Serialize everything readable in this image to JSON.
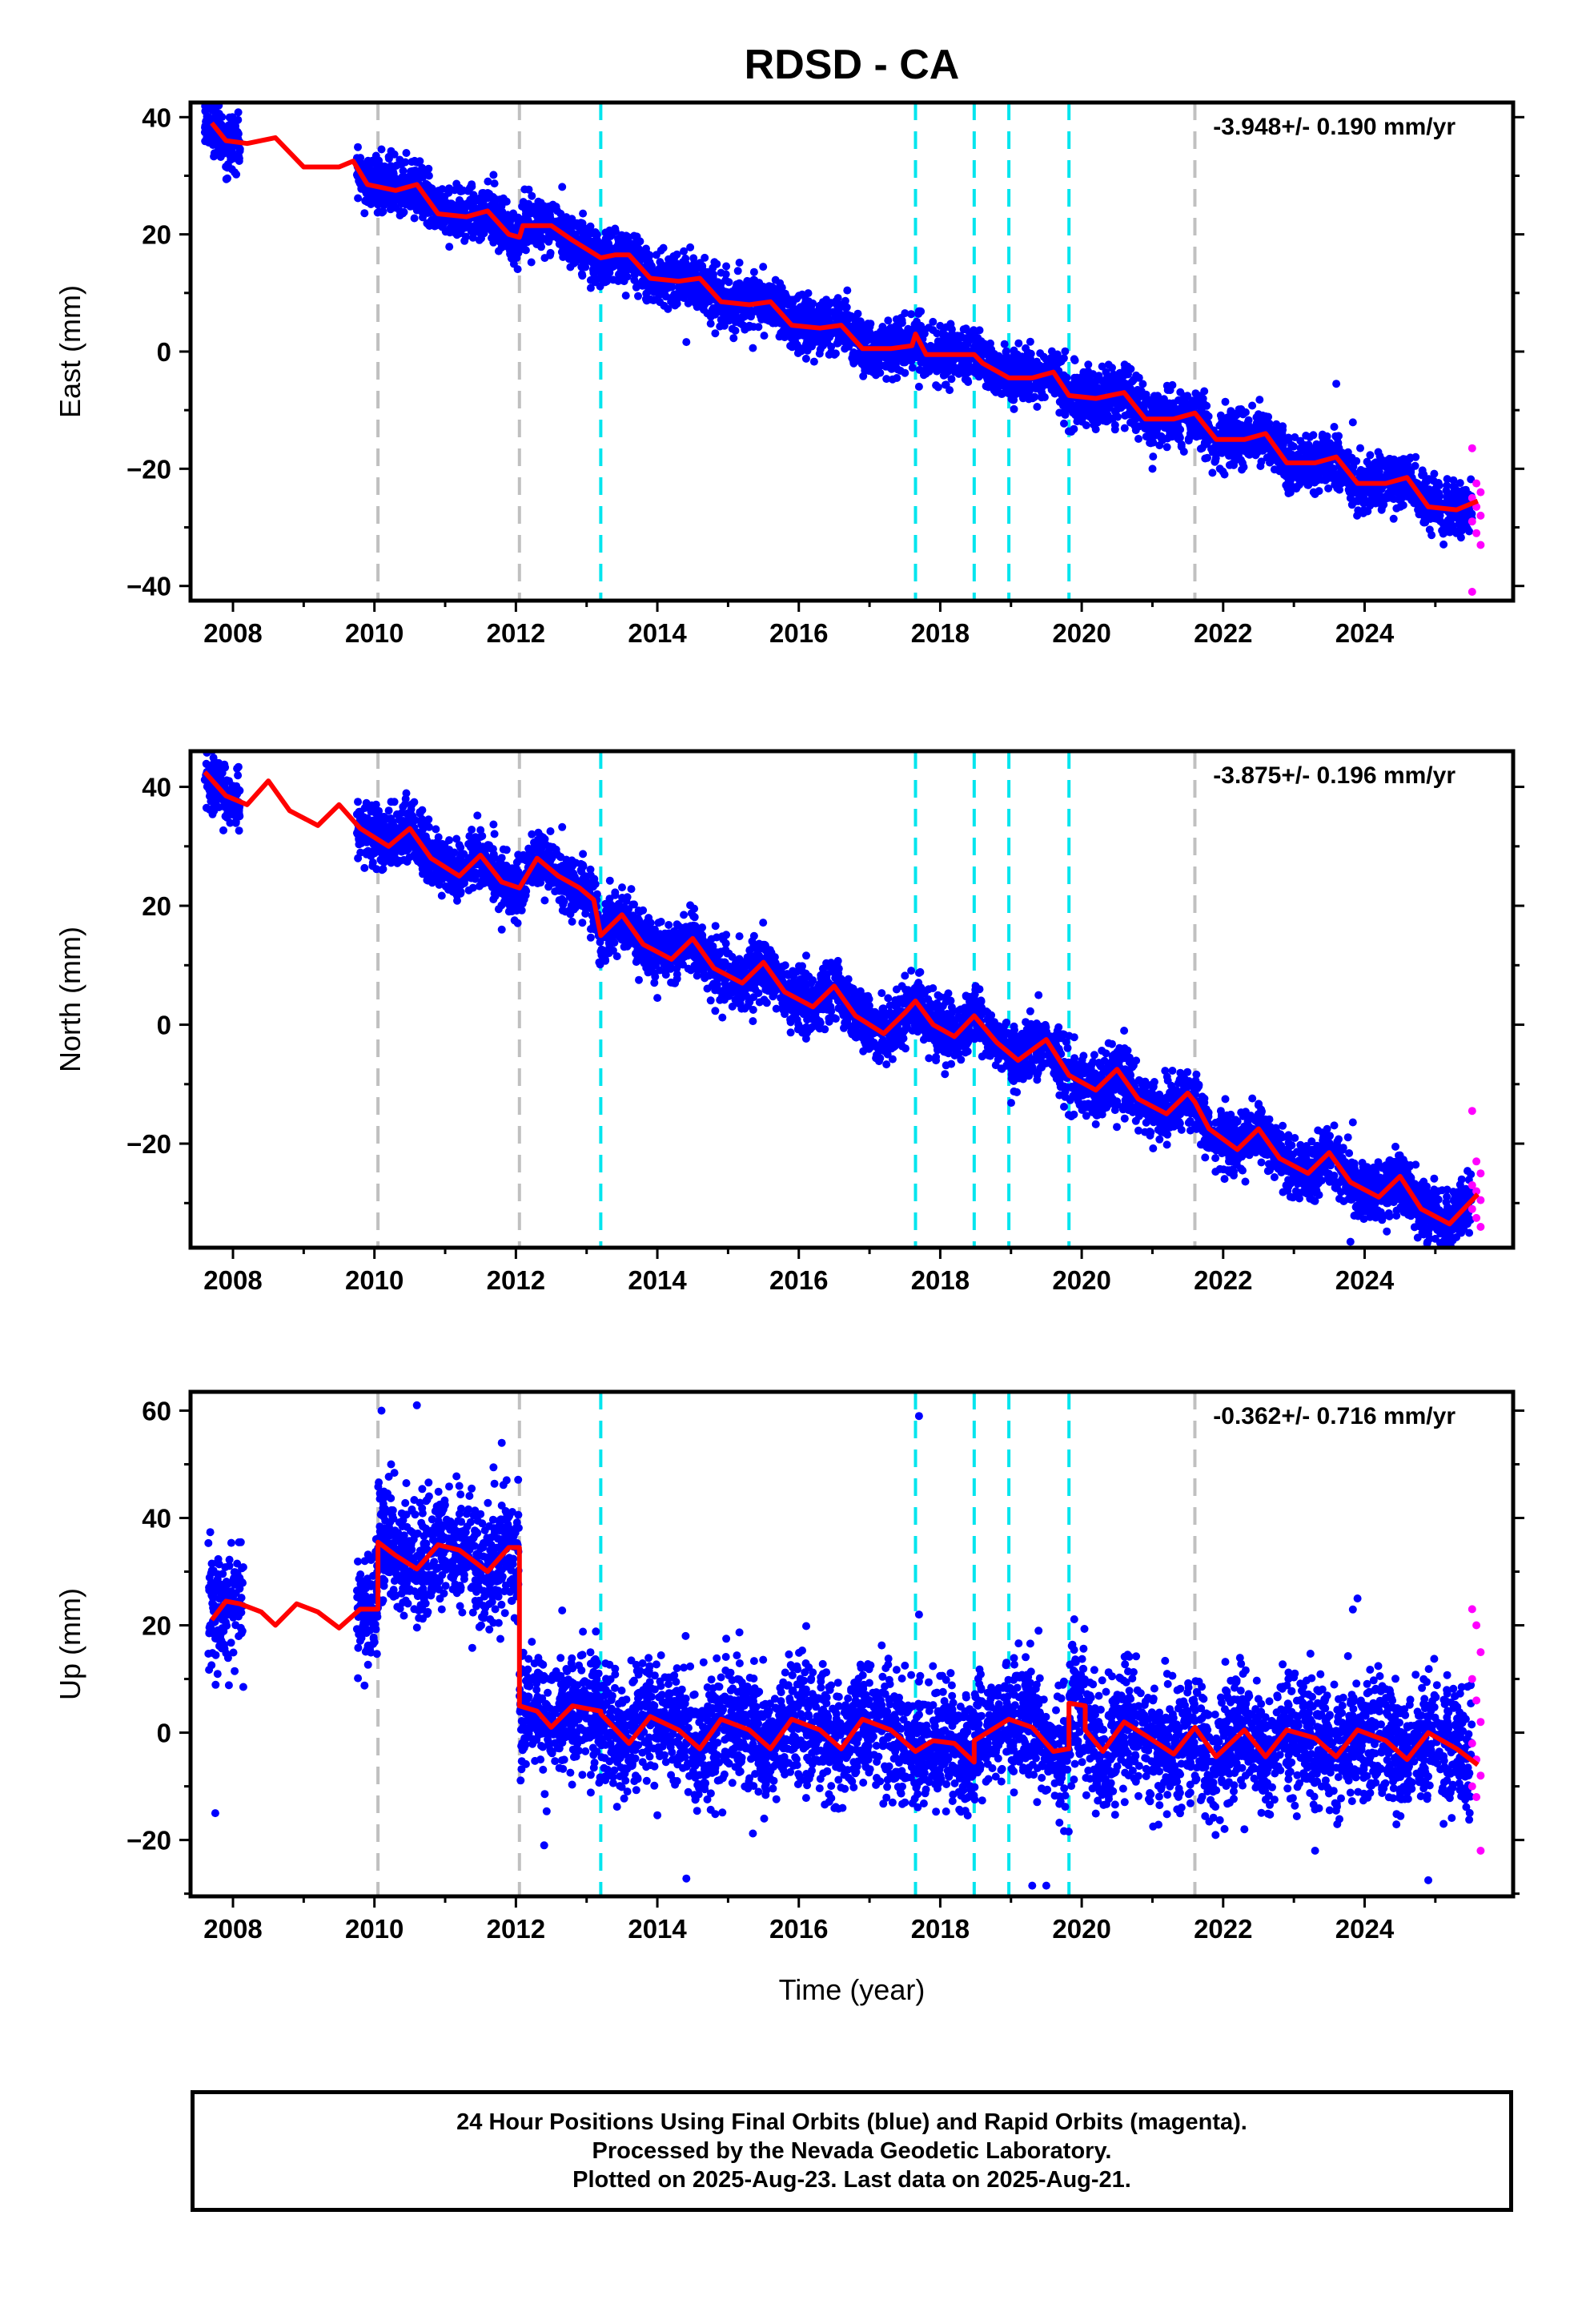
{
  "chart_data": {
    "type": "scatter",
    "title": "RDSD - CA",
    "xlabel": "Time (year)",
    "xlim": [
      2007.4,
      2026.1
    ],
    "xticks": [
      2008,
      2010,
      2012,
      2014,
      2016,
      2018,
      2020,
      2022,
      2024
    ],
    "xtick_labels": [
      "2008",
      "2010",
      "2012",
      "2014",
      "2016",
      "2018",
      "2020",
      "2022",
      "2024"
    ],
    "grey_dashed_lines": [
      2010.05,
      2012.05,
      2021.6
    ],
    "cyan_dashed_lines": [
      2013.2,
      2017.65,
      2018.48,
      2018.97,
      2019.82
    ],
    "colors": {
      "final": "#0000ff",
      "rapid": "#ff00ff",
      "model": "#ff0000",
      "grey_line": "#c0c0c0",
      "cyan_line": "#00e5ee"
    },
    "panels": [
      {
        "id": "east",
        "ylabel": "East (mm)",
        "ylim": [
          -42.5,
          42.5
        ],
        "yticks": [
          -40,
          -20,
          0,
          20,
          40
        ],
        "ytick_labels": [
          "−40",
          "−20",
          "0",
          "20",
          "40"
        ],
        "rate_label": "-3.948+/- 0.190 mm/yr",
        "rate": -3.948,
        "model": [
          [
            2007.7,
            39
          ],
          [
            2007.9,
            36
          ],
          [
            2008.2,
            35.5
          ],
          [
            2008.6,
            36.5
          ],
          [
            2009.0,
            31.5
          ],
          [
            2009.5,
            31.5
          ],
          [
            2009.7,
            32.5
          ],
          [
            2009.9,
            28.5
          ],
          [
            2010.3,
            27.5
          ],
          [
            2010.6,
            28.5
          ],
          [
            2010.9,
            23.5
          ],
          [
            2011.3,
            23
          ],
          [
            2011.6,
            24
          ],
          [
            2011.9,
            20
          ],
          [
            2012.05,
            19.5
          ],
          [
            2012.1,
            21.5
          ],
          [
            2012.5,
            21.5
          ],
          [
            2012.8,
            19
          ],
          [
            2013.0,
            17.5
          ],
          [
            2013.2,
            16
          ],
          [
            2013.4,
            16.5
          ],
          [
            2013.6,
            16.5
          ],
          [
            2013.9,
            12.5
          ],
          [
            2014.3,
            12
          ],
          [
            2014.6,
            12.5
          ],
          [
            2014.9,
            8.5
          ],
          [
            2015.3,
            8
          ],
          [
            2015.6,
            8.5
          ],
          [
            2015.9,
            4.5
          ],
          [
            2016.3,
            4
          ],
          [
            2016.6,
            4.5
          ],
          [
            2016.9,
            0.5
          ],
          [
            2017.3,
            0.5
          ],
          [
            2017.6,
            1
          ],
          [
            2017.65,
            3
          ],
          [
            2017.8,
            -0.5
          ],
          [
            2018.1,
            -0.5
          ],
          [
            2018.48,
            -0.5
          ],
          [
            2018.6,
            -2
          ],
          [
            2018.97,
            -4.5
          ],
          [
            2019.3,
            -4.5
          ],
          [
            2019.6,
            -3.5
          ],
          [
            2019.82,
            -7.5
          ],
          [
            2020.2,
            -8
          ],
          [
            2020.6,
            -7
          ],
          [
            2020.9,
            -11.5
          ],
          [
            2021.3,
            -11.5
          ],
          [
            2021.6,
            -10.5
          ],
          [
            2021.9,
            -15
          ],
          [
            2022.3,
            -15
          ],
          [
            2022.6,
            -14
          ],
          [
            2022.9,
            -19
          ],
          [
            2023.3,
            -19
          ],
          [
            2023.6,
            -18
          ],
          [
            2023.9,
            -22.5
          ],
          [
            2024.3,
            -22.5
          ],
          [
            2024.6,
            -21.5
          ],
          [
            2024.9,
            -26.5
          ],
          [
            2025.3,
            -27
          ],
          [
            2025.6,
            -25.5
          ]
        ],
        "obs_spans": [
          [
            2007.6,
            2008.1
          ],
          [
            2009.75,
            2025.52
          ]
        ],
        "obs_noise": 2.2,
        "rapid": {
          "x_range": [
            2025.52,
            2025.64
          ],
          "y_values": [
            -16.5,
            -22.5,
            -24,
            -25,
            -26.5,
            -28,
            -29,
            -31,
            -33,
            -41
          ]
        },
        "outliers": [
          [
            2007.8,
            42
          ],
          [
            2010.1,
            34.5
          ],
          [
            2021.0,
            -20
          ],
          [
            2023.6,
            -5.5
          ],
          [
            2012.1,
            17.5
          ],
          [
            2017.7,
            -6
          ]
        ]
      },
      {
        "id": "north",
        "ylabel": "North (mm)",
        "ylim": [
          -37.5,
          46
        ],
        "yticks": [
          -20,
          0,
          20,
          40
        ],
        "ytick_labels": [
          "−20",
          "0",
          "20",
          "40"
        ],
        "rate_label": "-3.875+/- 0.196 mm/yr",
        "rate": -3.875,
        "model": [
          [
            2007.6,
            42.5
          ],
          [
            2007.9,
            38.5
          ],
          [
            2008.2,
            37
          ],
          [
            2008.5,
            41
          ],
          [
            2008.8,
            36
          ],
          [
            2009.2,
            33.5
          ],
          [
            2009.5,
            37
          ],
          [
            2009.8,
            33
          ],
          [
            2010.2,
            30
          ],
          [
            2010.5,
            33
          ],
          [
            2010.8,
            28
          ],
          [
            2011.2,
            25
          ],
          [
            2011.5,
            28.5
          ],
          [
            2011.8,
            24
          ],
          [
            2012.05,
            23
          ],
          [
            2012.3,
            28
          ],
          [
            2012.6,
            25
          ],
          [
            2012.9,
            23
          ],
          [
            2013.1,
            21
          ],
          [
            2013.2,
            15
          ],
          [
            2013.5,
            18.5
          ],
          [
            2013.8,
            13.5
          ],
          [
            2014.2,
            11
          ],
          [
            2014.5,
            14.5
          ],
          [
            2014.8,
            9.5
          ],
          [
            2015.2,
            7
          ],
          [
            2015.5,
            10.5
          ],
          [
            2015.8,
            5.5
          ],
          [
            2016.2,
            3
          ],
          [
            2016.5,
            6.5
          ],
          [
            2016.8,
            1.5
          ],
          [
            2017.2,
            -1.5
          ],
          [
            2017.5,
            2
          ],
          [
            2017.65,
            4
          ],
          [
            2017.9,
            0
          ],
          [
            2018.2,
            -2
          ],
          [
            2018.48,
            1.5
          ],
          [
            2018.8,
            -3
          ],
          [
            2019.1,
            -6
          ],
          [
            2019.5,
            -2.5
          ],
          [
            2019.82,
            -8.5
          ],
          [
            2020.2,
            -11
          ],
          [
            2020.5,
            -7.5
          ],
          [
            2020.8,
            -12.5
          ],
          [
            2021.2,
            -15
          ],
          [
            2021.5,
            -11.5
          ],
          [
            2021.6,
            -13
          ],
          [
            2021.8,
            -17.5
          ],
          [
            2022.2,
            -21
          ],
          [
            2022.5,
            -17.5
          ],
          [
            2022.8,
            -22.5
          ],
          [
            2023.2,
            -25
          ],
          [
            2023.5,
            -21.5
          ],
          [
            2023.8,
            -26.5
          ],
          [
            2024.2,
            -29
          ],
          [
            2024.5,
            -25.5
          ],
          [
            2024.8,
            -31
          ],
          [
            2025.2,
            -33.5
          ],
          [
            2025.6,
            -28.5
          ]
        ],
        "obs_spans": [
          [
            2007.6,
            2008.1
          ],
          [
            2009.75,
            2025.52
          ]
        ],
        "obs_noise": 2.4,
        "rapid": {
          "x_range": [
            2025.52,
            2025.64
          ],
          "y_values": [
            -14.5,
            -23,
            -25,
            -27,
            -28,
            -29.5,
            -31,
            -32.5,
            -34
          ]
        },
        "outliers": [
          [
            2007.8,
            44
          ],
          [
            2011.8,
            16
          ],
          [
            2020.6,
            -1
          ],
          [
            2023.8,
            -36.5
          ],
          [
            2018.5,
            6.5
          ],
          [
            2025.0,
            -36
          ]
        ]
      },
      {
        "id": "up",
        "ylabel": "Up (mm)",
        "ylim": [
          -30.5,
          63.5
        ],
        "yticks": [
          -20,
          0,
          20,
          40,
          60
        ],
        "ytick_labels": [
          "−20",
          "0",
          "20",
          "40",
          "60"
        ],
        "rate_label": "-0.362+/- 0.716 mm/yr",
        "rate": -0.362,
        "model": [
          [
            2007.7,
            21
          ],
          [
            2007.9,
            24.5
          ],
          [
            2008.1,
            24
          ],
          [
            2008.4,
            22.5
          ],
          [
            2008.6,
            20
          ],
          [
            2008.9,
            24
          ],
          [
            2009.2,
            22.5
          ],
          [
            2009.5,
            19.5
          ],
          [
            2009.8,
            23
          ],
          [
            2010.05,
            23
          ],
          [
            2010.05,
            35.5
          ],
          [
            2010.3,
            33
          ],
          [
            2010.6,
            30.5
          ],
          [
            2010.9,
            35
          ],
          [
            2011.2,
            34
          ],
          [
            2011.6,
            30
          ],
          [
            2011.9,
            34.5
          ],
          [
            2012.05,
            34.5
          ],
          [
            2012.05,
            5
          ],
          [
            2012.3,
            4
          ],
          [
            2012.5,
            1
          ],
          [
            2012.8,
            5
          ],
          [
            2013.2,
            4
          ],
          [
            2013.2,
            3.5
          ],
          [
            2013.6,
            -2
          ],
          [
            2013.9,
            3
          ],
          [
            2014.3,
            0.5
          ],
          [
            2014.6,
            -3
          ],
          [
            2014.9,
            2.5
          ],
          [
            2015.3,
            0.5
          ],
          [
            2015.6,
            -3
          ],
          [
            2015.9,
            2.5
          ],
          [
            2016.3,
            0.5
          ],
          [
            2016.6,
            -3
          ],
          [
            2016.9,
            2.5
          ],
          [
            2017.3,
            0.5
          ],
          [
            2017.65,
            -3.5
          ],
          [
            2017.9,
            -1.5
          ],
          [
            2018.2,
            -2
          ],
          [
            2018.48,
            -5.5
          ],
          [
            2018.48,
            -1.5
          ],
          [
            2018.97,
            2.5
          ],
          [
            2019.3,
            1
          ],
          [
            2019.6,
            -3.5
          ],
          [
            2019.82,
            -3
          ],
          [
            2019.82,
            5.5
          ],
          [
            2020.05,
            5
          ],
          [
            2020.05,
            0.5
          ],
          [
            2020.3,
            -3.5
          ],
          [
            2020.6,
            2
          ],
          [
            2020.9,
            -0.5
          ],
          [
            2021.3,
            -4
          ],
          [
            2021.6,
            1
          ],
          [
            2021.9,
            -4.5
          ],
          [
            2022.3,
            0.5
          ],
          [
            2022.6,
            -4.5
          ],
          [
            2022.9,
            0.5
          ],
          [
            2023.3,
            -1
          ],
          [
            2023.6,
            -4.5
          ],
          [
            2023.9,
            0.5
          ],
          [
            2024.3,
            -1.5
          ],
          [
            2024.6,
            -5
          ],
          [
            2024.9,
            0
          ],
          [
            2025.3,
            -3
          ],
          [
            2025.6,
            -6
          ]
        ],
        "obs_spans": [
          [
            2007.65,
            2007.95
          ],
          [
            2007.95,
            2008.15
          ],
          [
            2009.75,
            2025.52
          ]
        ],
        "obs_noise": 5.5,
        "rapid": {
          "x_range": [
            2025.52,
            2025.64
          ],
          "y_values": [
            23,
            20,
            15,
            10,
            6,
            2,
            -2,
            -5,
            -8,
            -10,
            -12,
            -22
          ]
        },
        "outliers": [
          [
            2007.7,
            31.5
          ],
          [
            2007.75,
            -15
          ],
          [
            2010.1,
            60
          ],
          [
            2010.6,
            61
          ],
          [
            2011.8,
            54
          ],
          [
            2012.4,
            -21
          ],
          [
            2017.7,
            59
          ],
          [
            2017.7,
            22
          ],
          [
            2019.3,
            -28.5
          ],
          [
            2019.5,
            -28.5
          ],
          [
            2023.9,
            25
          ],
          [
            2024.9,
            -27.5
          ],
          [
            2023.3,
            -22
          ],
          [
            2022.3,
            -18
          ],
          [
            2014.4,
            18
          ]
        ]
      }
    ]
  },
  "footer": {
    "line1": "24 Hour Positions Using Final Orbits (blue) and Rapid Orbits (magenta).",
    "line2": "Processed by the Nevada Geodetic Laboratory.",
    "line3": "Plotted on 2025-Aug-23. Last data on 2025-Aug-21."
  }
}
